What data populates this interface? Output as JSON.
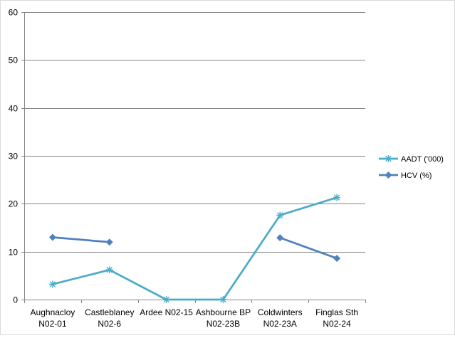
{
  "chart_data": {
    "type": "line",
    "title": "",
    "xlabel": "",
    "ylabel": "",
    "ylim": [
      0,
      60
    ],
    "yticks": [
      "0",
      "10",
      "20",
      "30",
      "40",
      "50",
      "60"
    ],
    "grid": "horizontal",
    "legend_position": "right",
    "categories": [
      [
        "Aughnacloy",
        "N02-01"
      ],
      [
        "Castleblaney",
        "N02-6"
      ],
      [
        "Ardee N02-15"
      ],
      [
        "Ashbourne BP",
        "N02-23B"
      ],
      [
        "Coldwinters",
        "N02-23A"
      ],
      [
        "Finglas Sth",
        "N02-24"
      ]
    ],
    "series": [
      {
        "name": "AADT ('000)",
        "color": "#4bacc6",
        "marker": "star",
        "values": [
          3.2,
          6.2,
          0,
          0,
          17.6,
          21.3
        ]
      },
      {
        "name": "HCV (%)",
        "color": "#4f81bd",
        "marker": "diamond",
        "values": [
          13.0,
          12.0,
          null,
          null,
          12.9,
          8.6
        ]
      }
    ]
  }
}
